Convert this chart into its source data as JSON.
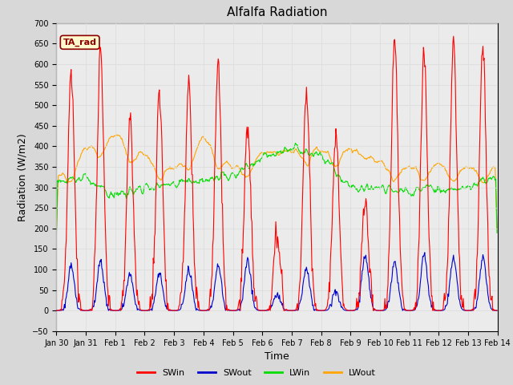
{
  "title": "Alfalfa Radiation",
  "xlabel": "Time",
  "ylabel": "Radiation (W/m2)",
  "ylim": [
    -50,
    700
  ],
  "annotation": "TA_rad",
  "annotation_color": "#8B0000",
  "annotation_bg": "#FFFACD",
  "series": {
    "SWin": {
      "color": "#FF0000",
      "lw": 0.8
    },
    "SWout": {
      "color": "#0000CD",
      "lw": 0.8
    },
    "LWin": {
      "color": "#00DD00",
      "lw": 0.8
    },
    "LWout": {
      "color": "#FFA500",
      "lw": 0.8
    }
  },
  "legend": [
    "SWin",
    "SWout",
    "LWin",
    "LWout"
  ],
  "legend_colors": [
    "#FF0000",
    "#0000CD",
    "#00DD00",
    "#FFA500"
  ],
  "tick_labels": [
    "Jan 30",
    "Jan 31",
    "Feb 1",
    "Feb 2",
    "Feb 3",
    "Feb 4",
    "Feb 5",
    "Feb 6",
    "Feb 7",
    "Feb 8",
    "Feb 9",
    "Feb 10",
    "Feb 11",
    "Feb 12",
    "Feb 13",
    "Feb 14"
  ],
  "grid_color": "#DDDDDD",
  "bg_color": "#D8D8D8",
  "plot_bg": "#EBEBEB",
  "title_fontsize": 11,
  "axis_fontsize": 9,
  "tick_fontsize": 7,
  "legend_fontsize": 8
}
